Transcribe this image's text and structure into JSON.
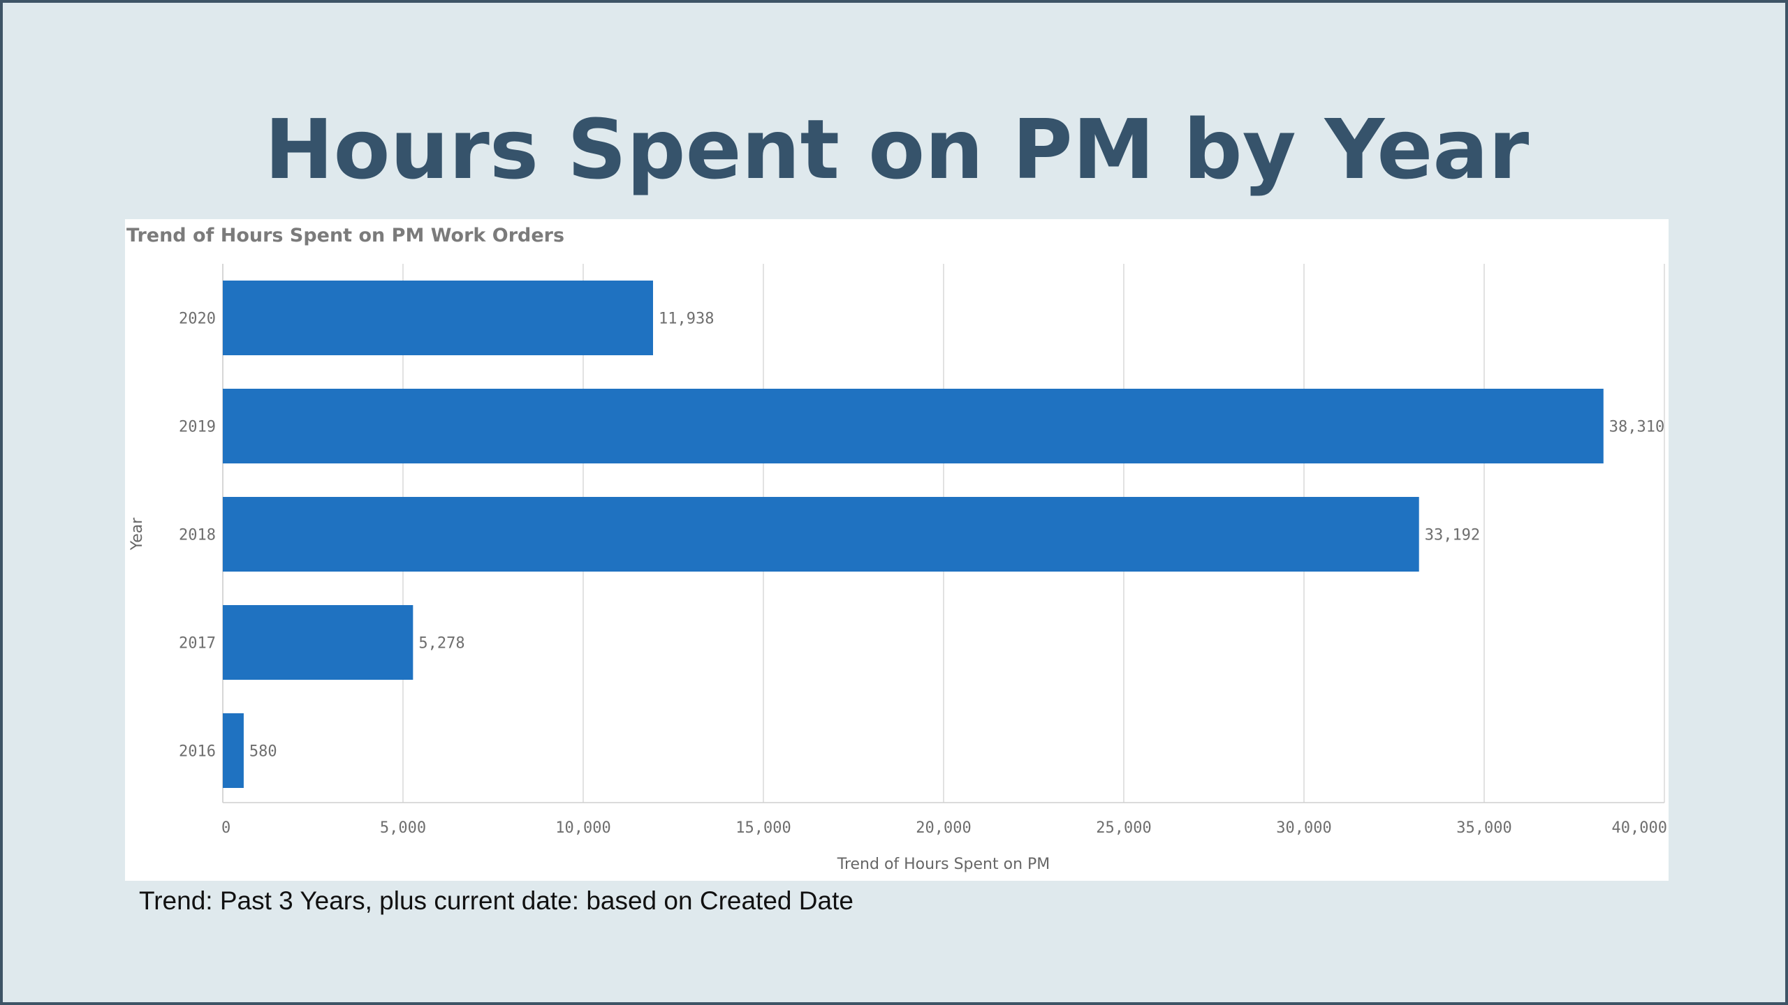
{
  "slide": {
    "title": "Hours Spent on PM by Year",
    "footnote": "Trend: Past 3 Years, plus current date: based on Created Date"
  },
  "colors": {
    "background": "#dfe9ed",
    "border": "#3e5466",
    "title": "#36536b",
    "bar": "#1f72c1",
    "gridline": "#d9d9d9"
  },
  "chart_data": {
    "type": "bar",
    "orientation": "horizontal",
    "title": "Trend of Hours Spent on PM Work Orders",
    "xlabel": "Trend of Hours Spent on PM",
    "ylabel": "Year",
    "categories": [
      "2020",
      "2019",
      "2018",
      "2017",
      "2016"
    ],
    "values": [
      11938,
      38310,
      33192,
      5278,
      580
    ],
    "value_labels": [
      "11,938",
      "38,310",
      "33,192",
      "5,278",
      "580"
    ],
    "xlim": [
      0,
      40000
    ],
    "xticks": [
      0,
      5000,
      10000,
      15000,
      20000,
      25000,
      30000,
      35000,
      40000
    ],
    "xtick_labels": [
      "0",
      "5,000",
      "10,000",
      "15,000",
      "20,000",
      "25,000",
      "30,000",
      "35,000",
      "40,000"
    ],
    "grid": true,
    "legend": "none"
  }
}
